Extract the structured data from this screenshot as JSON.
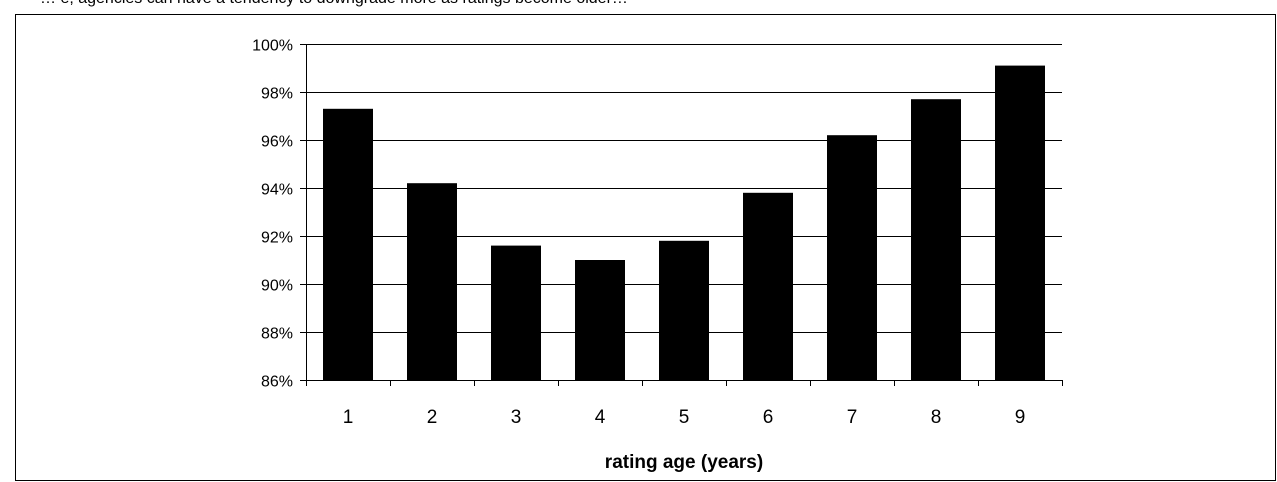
{
  "header_text": "… e, agencies can have a tendency to downgrade more as ratings become older…",
  "chart_data": {
    "type": "bar",
    "title": "",
    "xlabel": "rating age (years)",
    "ylabel": "",
    "categories": [
      "1",
      "2",
      "3",
      "4",
      "5",
      "6",
      "7",
      "8",
      "9"
    ],
    "values": [
      97.3,
      94.2,
      91.6,
      91.0,
      91.8,
      93.8,
      96.2,
      97.7,
      99.1
    ],
    "ylim": [
      86,
      100
    ],
    "y_ticks": [
      "86%",
      "88%",
      "90%",
      "92%",
      "94%",
      "96%",
      "98%",
      "100%"
    ],
    "y_tick_values": [
      86,
      88,
      90,
      92,
      94,
      96,
      98,
      100
    ],
    "grid": true,
    "legend": "none",
    "bar_color": "#000000"
  }
}
